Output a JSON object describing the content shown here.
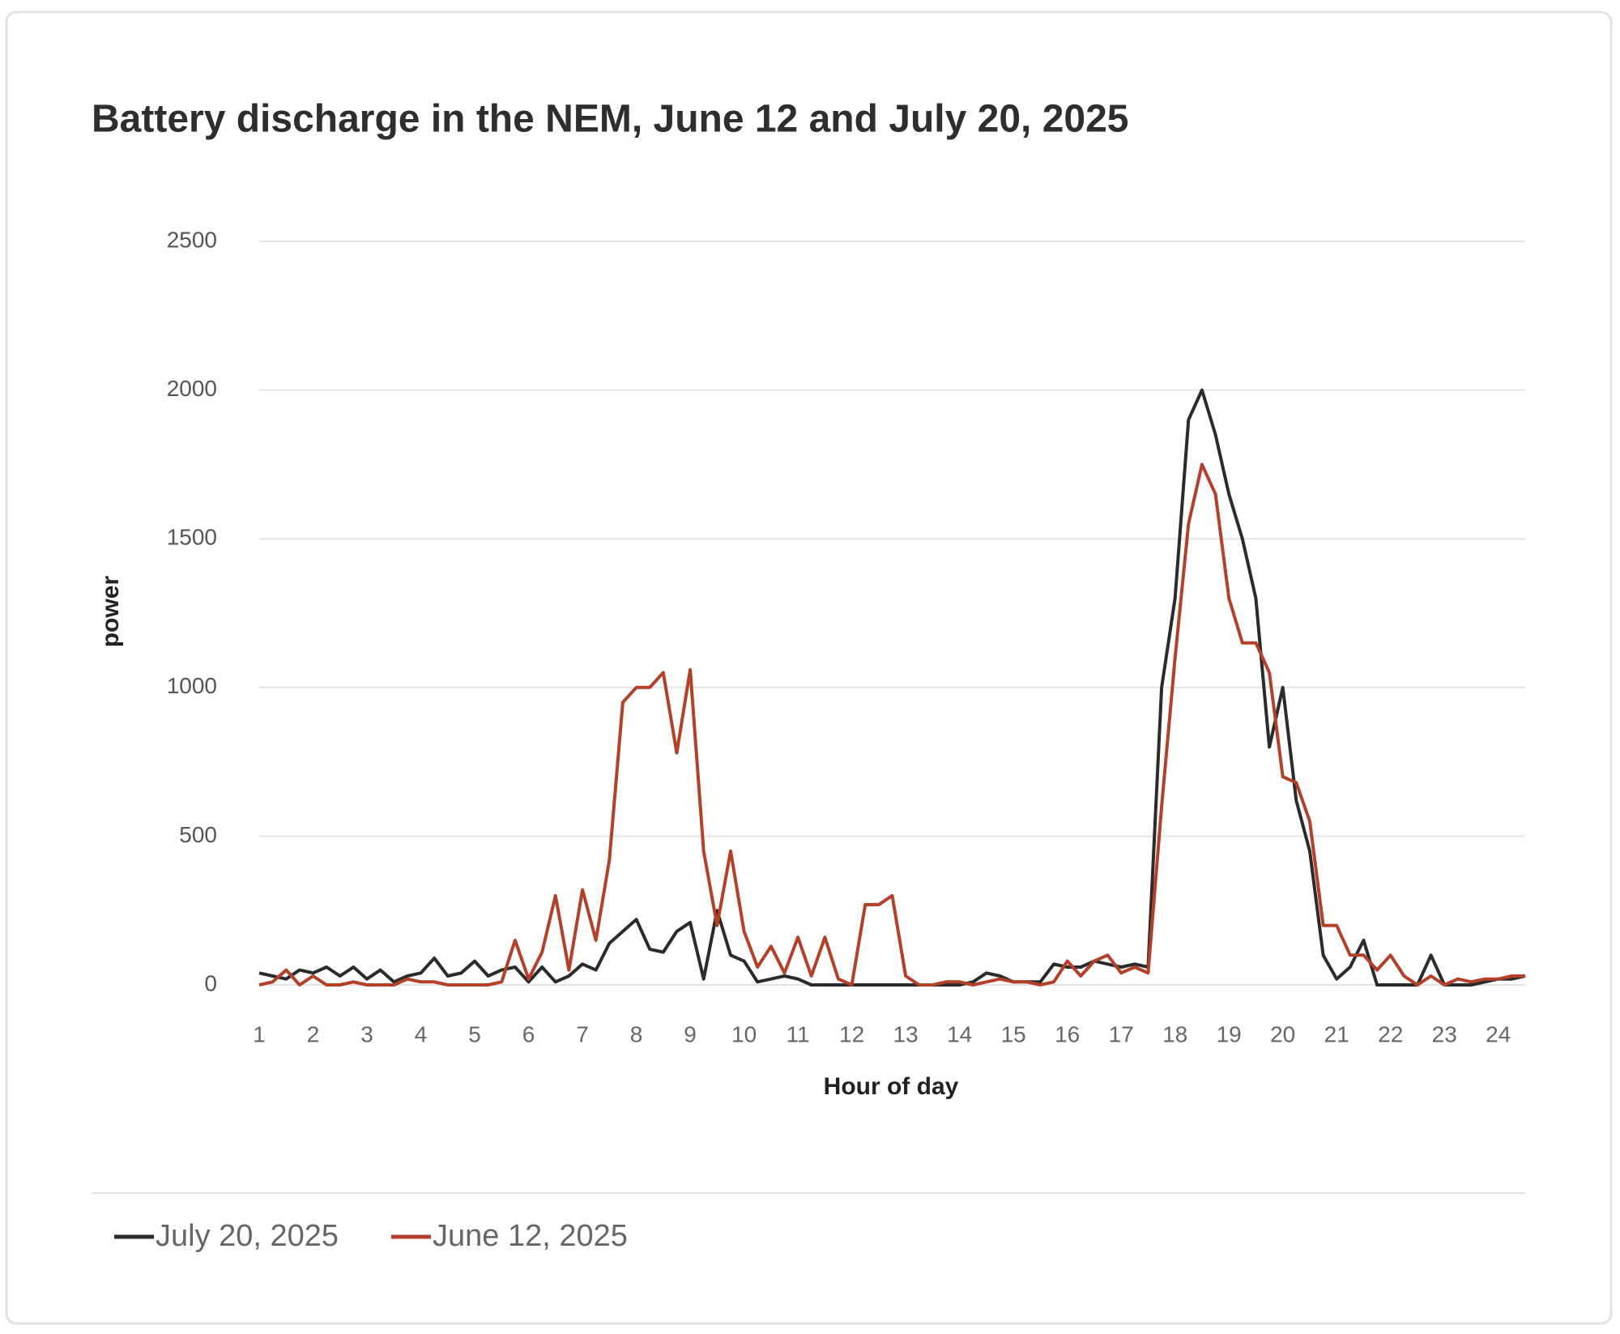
{
  "chart_data": {
    "type": "line",
    "title": "Battery discharge in the NEM, June 12 and July 20, 2025",
    "x_label": "Hour of day",
    "y_label": "power",
    "x": [
      1,
      1.25,
      1.5,
      1.75,
      2,
      2.25,
      2.5,
      2.75,
      3,
      3.25,
      3.5,
      3.75,
      4,
      4.25,
      4.5,
      4.75,
      5,
      5.25,
      5.5,
      5.75,
      6,
      6.25,
      6.5,
      6.75,
      7,
      7.25,
      7.5,
      7.75,
      8,
      8.25,
      8.5,
      8.75,
      9,
      9.25,
      9.5,
      9.75,
      10,
      10.25,
      10.5,
      10.75,
      11,
      11.25,
      11.5,
      11.75,
      12,
      12.25,
      12.5,
      12.75,
      13,
      13.25,
      13.5,
      13.75,
      14,
      14.25,
      14.5,
      14.75,
      15,
      15.25,
      15.5,
      15.75,
      16,
      16.25,
      16.5,
      16.75,
      17,
      17.25,
      17.5,
      17.75,
      18,
      18.25,
      18.5,
      18.75,
      19,
      19.25,
      19.5,
      19.75,
      20,
      20.25,
      20.5,
      20.75,
      21,
      21.25,
      21.5,
      21.75,
      22,
      22.25,
      22.5,
      22.75,
      23,
      23.25,
      23.5,
      23.75,
      24,
      24.25,
      24.5
    ],
    "series": [
      {
        "name": "July 20, 2025",
        "color": "#2b2b2b",
        "values": [
          40,
          30,
          20,
          50,
          40,
          60,
          30,
          60,
          20,
          50,
          10,
          30,
          40,
          90,
          30,
          40,
          80,
          30,
          50,
          60,
          10,
          60,
          10,
          30,
          70,
          50,
          140,
          180,
          220,
          120,
          110,
          180,
          210,
          20,
          250,
          100,
          80,
          10,
          20,
          30,
          20,
          0,
          0,
          0,
          0,
          0,
          0,
          0,
          0,
          0,
          0,
          0,
          0,
          10,
          40,
          30,
          10,
          10,
          10,
          70,
          60,
          60,
          80,
          70,
          60,
          70,
          60,
          1000,
          1300,
          1900,
          2000,
          1850,
          1650,
          1500,
          1300,
          800,
          1000,
          620,
          450,
          100,
          20,
          60,
          150,
          0,
          0,
          0,
          0,
          100,
          0,
          0,
          0,
          10,
          20,
          20,
          30
        ]
      },
      {
        "name": "June 12, 2025",
        "color": "#b5402a",
        "values": [
          0,
          10,
          50,
          0,
          30,
          0,
          0,
          10,
          0,
          0,
          0,
          20,
          10,
          10,
          0,
          0,
          0,
          0,
          10,
          150,
          20,
          110,
          300,
          50,
          320,
          150,
          420,
          950,
          1000,
          1000,
          1050,
          780,
          1060,
          450,
          200,
          450,
          180,
          60,
          130,
          40,
          160,
          30,
          160,
          20,
          0,
          270,
          270,
          300,
          30,
          0,
          0,
          10,
          10,
          0,
          10,
          20,
          10,
          10,
          0,
          10,
          80,
          30,
          80,
          100,
          40,
          60,
          40,
          600,
          1100,
          1550,
          1750,
          1650,
          1300,
          1150,
          1150,
          1050,
          700,
          680,
          550,
          200,
          200,
          100,
          100,
          50,
          100,
          30,
          0,
          30,
          0,
          20,
          10,
          20,
          20,
          30,
          30
        ]
      }
    ],
    "xlim": [
      1,
      24.5
    ],
    "xticks": [
      1,
      2,
      3,
      4,
      5,
      6,
      7,
      8,
      9,
      10,
      11,
      12,
      13,
      14,
      15,
      16,
      17,
      18,
      19,
      20,
      21,
      22,
      23,
      24
    ],
    "ylim": [
      0,
      2500
    ],
    "yticks": [
      0,
      500,
      1000,
      1500,
      2000,
      2500
    ],
    "grid": true
  }
}
